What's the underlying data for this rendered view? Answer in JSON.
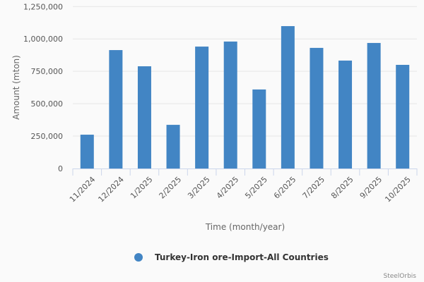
{
  "chart_data": {
    "type": "bar",
    "categories": [
      "11/2024",
      "12/2024",
      "1/2025",
      "2/2025",
      "3/2025",
      "4/2025",
      "5/2025",
      "6/2025",
      "7/2025",
      "8/2025",
      "9/2025",
      "10/2025"
    ],
    "series": [
      {
        "name": "Turkey-Iron ore-Import-All Countries",
        "values": [
          261000,
          914000,
          789000,
          337000,
          941000,
          980000,
          610000,
          1099000,
          931000,
          833000,
          969000,
          800000
        ]
      }
    ],
    "xlabel": "Time (month/year)",
    "ylabel": "Amount (mton)",
    "ylim": [
      0,
      1250000
    ],
    "yticks": [
      0,
      250000,
      500000,
      750000,
      1000000,
      1250000
    ],
    "ytick_labels": [
      "0",
      "250,000",
      "500,000",
      "750,000",
      "1,000,000",
      "1,250,000"
    ],
    "grid": true,
    "legend_position": "bottom",
    "bar_color": "#4285c4"
  },
  "credit": "SteelOrbis"
}
